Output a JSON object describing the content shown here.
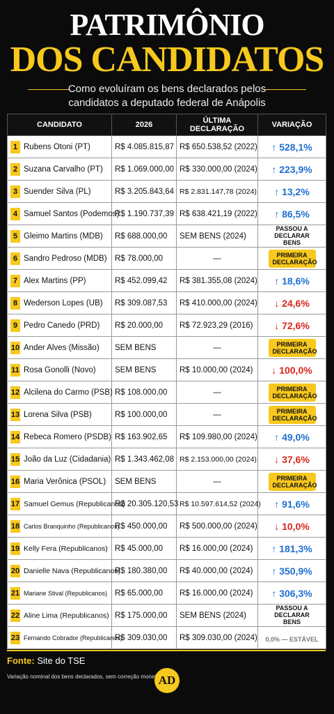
{
  "header": {
    "title_line1": "PATRIMÔNIO",
    "title_line2": "DOS CANDIDATOS",
    "subtitle_line1": "Como evoluíram os bens declarados pelos",
    "subtitle_line2": "candidatos a deputado federal de Anápolis"
  },
  "table": {
    "columns": [
      "CANDIDATO",
      "2026",
      "ÚLTIMA DECLARAÇÃO",
      "VARIAÇÃO"
    ],
    "rows": [
      {
        "num": "1",
        "name": "Rubens Otoni (PT)",
        "v2026": "R$ 4.085.815,87",
        "last": "R$ 650.538,52 (2022)",
        "var": "↑ 528,1%",
        "color": "#1f6fd1"
      },
      {
        "num": "2",
        "name": "Suzana Carvalho (PT)",
        "v2026": "R$ 1.069.000,00",
        "last": "R$ 330.000,00 (2024)",
        "var": "↑ 223,9%",
        "color": "#1f6fd1"
      },
      {
        "num": "3",
        "name": "Suender Silva (PL)",
        "v2026": "R$ 3.205.843,64",
        "last": "R$ 2.831.147,78 (2024)",
        "var": "↑ 13,2%",
        "color": "#1f6fd1"
      },
      {
        "num": "4",
        "name": "Samuel Santos (Podemos)",
        "v2026": "R$ 1.190.737,39",
        "last": "R$ 638.421,19 (2022)",
        "var": "↑ 86,5%",
        "color": "#1f6fd1"
      },
      {
        "num": "5",
        "name": "Gleimo Martins (MDB)",
        "v2026": "R$ 688.000,00",
        "last": "SEM BENS (2024)",
        "var": "PASSOU A DECLARAR BENS",
        "color": "#111111"
      },
      {
        "num": "6",
        "name": "Sandro Pedroso (MDB)",
        "v2026": "R$ 78.000,00",
        "last": "—",
        "var": "PRIMEIRA DECLARAÇÃO",
        "color": "#111111",
        "badge": "#f7c81e"
      },
      {
        "num": "7",
        "name": "Alex Martins (PP)",
        "v2026": "R$ 452.099,42",
        "last": "R$ 381.355,08 (2024)",
        "var": "↑ 18,6%",
        "color": "#1f6fd1"
      },
      {
        "num": "8",
        "name": "Wederson Lopes (UB)",
        "v2026": "R$ 309.087,53",
        "last": "R$ 410.000,00 (2024)",
        "var": "↓ 24,6%",
        "color": "#d8261c"
      },
      {
        "num": "9",
        "name": "Pedro Canedo (PRD)",
        "v2026": "R$ 20.000,00",
        "last": "R$ 72.923,29 (2016)",
        "var": "↓ 72,6%",
        "color": "#d8261c"
      },
      {
        "num": "10",
        "name": "Ander Alves (Missão)",
        "v2026": "SEM BENS",
        "last": "—",
        "var": "PRIMEIRA DECLARAÇÃO",
        "color": "#111111",
        "badge": "#f7c81e"
      },
      {
        "num": "11",
        "name": "Rosa Gonolli (Novo)",
        "v2026": "SEM BENS",
        "last": "R$ 10.000,00 (2024)",
        "var": "↓ 100,0%",
        "color": "#d8261c"
      },
      {
        "num": "12",
        "name": "Alcilena do Carmo (PSB)",
        "v2026": "R$ 108.000,00",
        "last": "—",
        "var": "PRIMEIRA DECLARAÇÃO",
        "color": "#111111",
        "badge": "#f7c81e"
      },
      {
        "num": "13",
        "name": "Lorena Silva (PSB)",
        "v2026": "R$ 100.000,00",
        "last": "—",
        "var": "PRIMEIRA DECLARAÇÃO",
        "color": "#111111",
        "badge": "#f7c81e"
      },
      {
        "num": "14",
        "name": "Rebeca Romero (PSDB)",
        "v2026": "R$ 163.902,65",
        "last": "R$ 109.980,00 (2024)",
        "var": "↑ 49,0%",
        "color": "#1f6fd1"
      },
      {
        "num": "15",
        "name": "João da Luz (Cidadania)",
        "v2026": "R$ 1.343.462,08",
        "last": "R$ 2.153.000,00 (2024)",
        "var": "↓ 37,6%",
        "color": "#d8261c"
      },
      {
        "num": "16",
        "name": "Maria Verônica (PSOL)",
        "v2026": "SEM BENS",
        "last": "—",
        "var": "PRIMEIRA DECLARAÇÃO",
        "color": "#111111",
        "badge": "#f7c81e"
      },
      {
        "num": "17",
        "name": "Samuel Gemus (Republicanos)",
        "v2026": "R$ 20.305.120,53",
        "last": "R$ 10.597.614,52 (2024)",
        "var": "↑ 91,6%",
        "color": "#1f6fd1"
      },
      {
        "num": "18",
        "name": "Carlos Branquinho (Republicanos)",
        "v2026": "R$ 450.000,00",
        "last": "R$ 500.000,00 (2024)",
        "var": "↓ 10,0%",
        "color": "#d8261c"
      },
      {
        "num": "19",
        "name": "Kelly Fera (Republicanos)",
        "v2026": "R$ 45.000,00",
        "last": "R$ 16.000,00 (2024)",
        "var": "↑ 181,3%",
        "color": "#1f6fd1"
      },
      {
        "num": "20",
        "name": "Danielle Nava (Republicanos)",
        "v2026": "R$ 180.380,00",
        "last": "R$ 40.000,00 (2024)",
        "var": "↑ 350,9%",
        "color": "#1f6fd1"
      },
      {
        "num": "21",
        "name": "Mariane Stival (Republicanos)",
        "v2026": "R$ 65.000,00",
        "last": "R$ 16.000,00 (2024)",
        "var": "↑ 306,3%",
        "color": "#1f6fd1"
      },
      {
        "num": "22",
        "name": "Aline Lima (Republicanos)",
        "v2026": "R$ 175.000,00",
        "last": "SEM BENS (2024)",
        "var": "PASSOU A DECLARAR BENS",
        "color": "#111111"
      },
      {
        "num": "23",
        "name": "Fernando Cobrador (Republicanos)",
        "v2026": "R$ 309.030,00",
        "last": "R$ 309.030,00 (2024)",
        "var": "0,0% — ESTÁVEL",
        "color": "#777777"
      }
    ]
  },
  "footer": {
    "source_label": "Fonte:",
    "source": "Site do TSE",
    "note": "Variação nominal dos bens declarados, sem correção monetária.",
    "logo": "AD"
  }
}
